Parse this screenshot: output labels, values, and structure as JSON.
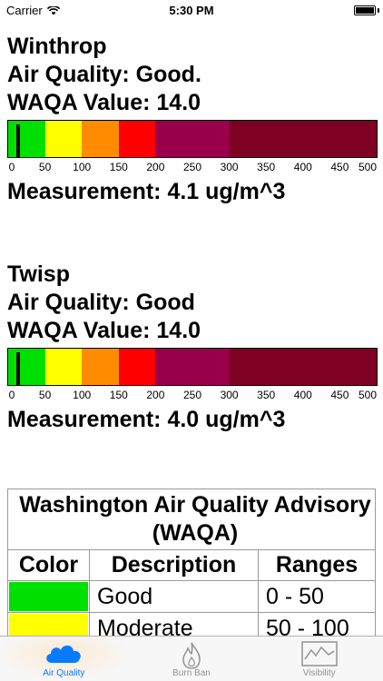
{
  "status_bar": {
    "carrier": "Carrier",
    "time": "5:30 PM"
  },
  "colors": {
    "good": "#00e000",
    "moderate": "#ffff00",
    "usg": "#ff8c00",
    "unhealthy": "#ff0000",
    "very_unhealthy": "#99004c",
    "hazardous": "#7e0023",
    "tab_active": "#0a7bff",
    "tab_inactive": "#929292"
  },
  "scale": {
    "ticks": [
      "0",
      "50",
      "100",
      "150",
      "200",
      "250",
      "300",
      "350",
      "400",
      "450",
      "500"
    ],
    "max": 500
  },
  "stations": [
    {
      "name": "Winthrop",
      "quality": "Air Quality: Good.",
      "waqa_value": "WAQA Value: 14.0",
      "marker_value": 14,
      "measurement": "Measurement: 4.1 ug/m^3"
    },
    {
      "name": "Twisp",
      "quality": "Air Quality: Good",
      "waqa_value": "WAQA Value: 14.0",
      "marker_value": 14,
      "measurement": "Measurement: 4.0 ug/m^3"
    }
  ],
  "legend": {
    "title": "Washington Air Quality Advisory (WAQA)",
    "headers": [
      "Color",
      "Description",
      "Ranges"
    ],
    "rows": [
      {
        "color": "#00e000",
        "description": "Good",
        "range": "0 - 50"
      },
      {
        "color": "#ffff00",
        "description": "Moderate",
        "range": "50 - 100"
      }
    ]
  },
  "tabs": [
    {
      "label": "Air Quality",
      "icon": "cloud-icon",
      "active": true
    },
    {
      "label": "Burn Ban",
      "icon": "flame-icon",
      "active": false
    },
    {
      "label": "Visibility",
      "icon": "mountain-icon",
      "active": false
    }
  ]
}
